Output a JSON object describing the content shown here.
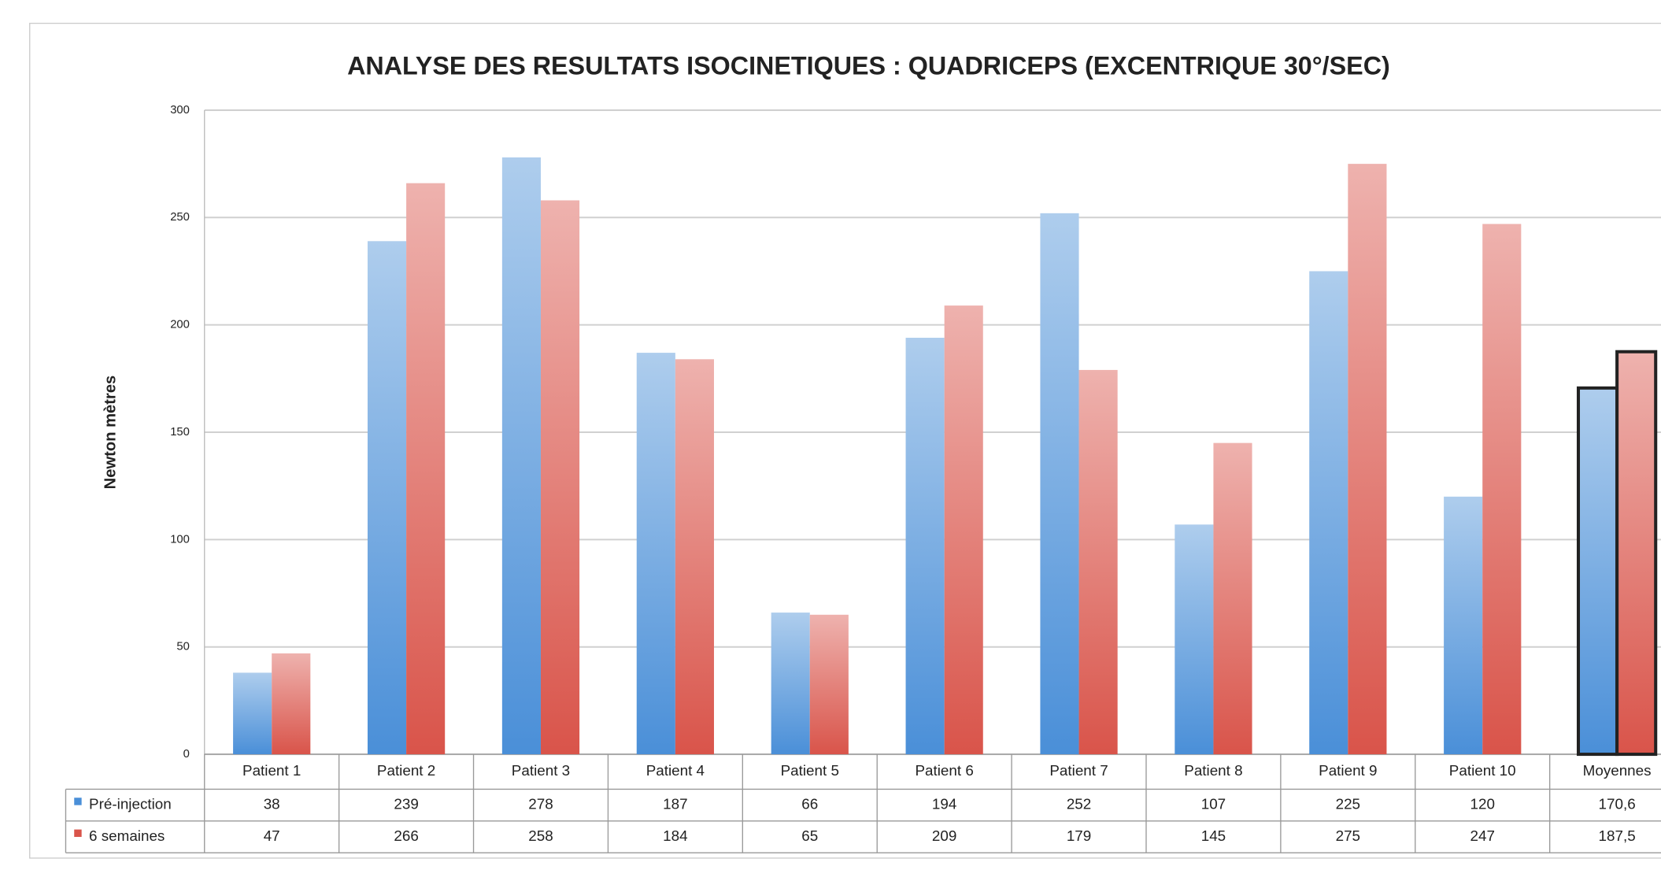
{
  "chart_data": {
    "type": "bar",
    "title": "ANALYSE DES RESULTATS ISOCINETIQUES : QUADRICEPS (EXCENTRIQUE 30°/SEC)",
    "y_label": "Newton mètres",
    "categories": [
      "Patient 1",
      "Patient 2",
      "Patient 3",
      "Patient 4",
      "Patient 5",
      "Patient 6",
      "Patient 7",
      "Patient 8",
      "Patient 9",
      "Patient 10",
      "Moyennes"
    ],
    "series": [
      {
        "name": "Pré-injection",
        "color": "#4a8fd8",
        "values": [
          38,
          239,
          278,
          187,
          66,
          194,
          252,
          107,
          225,
          120,
          170.6
        ],
        "value_labels": [
          "38",
          "239",
          "278",
          "187",
          "66",
          "194",
          "252",
          "107",
          "225",
          "120",
          "170,6"
        ]
      },
      {
        "name": "6 semaines",
        "color": "#d9544a",
        "values": [
          47,
          266,
          258,
          184,
          65,
          209,
          179,
          145,
          275,
          247,
          187.5
        ],
        "value_labels": [
          "47",
          "266",
          "258",
          "184",
          "65",
          "209",
          "179",
          "145",
          "275",
          "247",
          "187,5"
        ]
      }
    ],
    "ylim": [
      0,
      300
    ],
    "yticks": [
      0,
      50,
      100,
      150,
      200,
      250,
      300
    ],
    "grid": true
  }
}
